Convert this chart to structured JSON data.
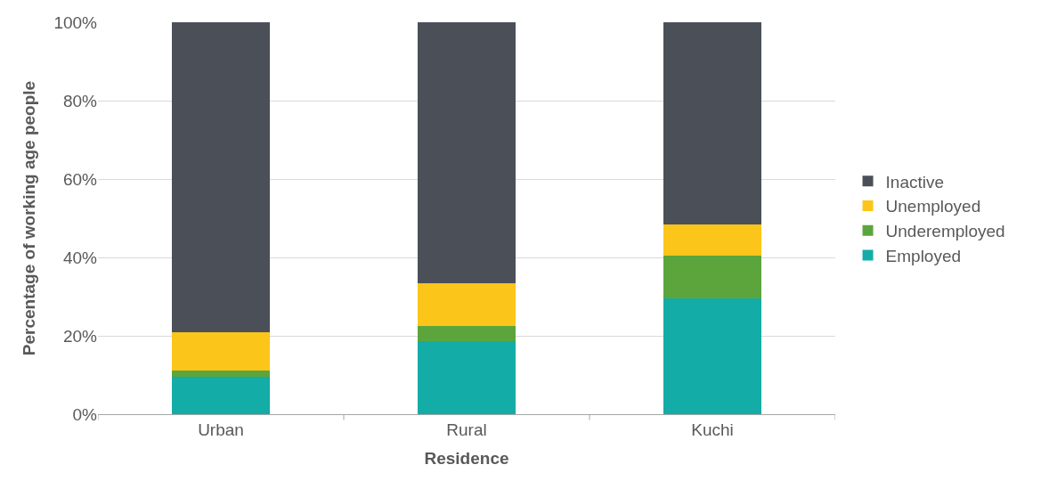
{
  "chart_data": {
    "type": "bar",
    "stacked": true,
    "xlabel": "Residence",
    "ylabel": "Percentage of working age people",
    "categories": [
      "Urban",
      "Rural",
      "Kuchi"
    ],
    "series": [
      {
        "name": "Employed",
        "color": "#14aca6",
        "values": [
          9.5,
          18.6,
          29.6
        ]
      },
      {
        "name": "Underemployed",
        "color": "#5ca53c",
        "values": [
          1.6,
          4.0,
          10.9
        ]
      },
      {
        "name": "Unemployed",
        "color": "#fbc51a",
        "values": [
          9.7,
          10.9,
          7.9
        ]
      },
      {
        "name": "Inactive",
        "color": "#4b5058",
        "values": [
          79.2,
          66.5,
          51.6
        ]
      }
    ],
    "ylim": [
      0,
      100
    ],
    "yticks": [
      {
        "value": 0,
        "label": "0%"
      },
      {
        "value": 20,
        "label": "20%"
      },
      {
        "value": 40,
        "label": "40%"
      },
      {
        "value": 60,
        "label": "60%"
      },
      {
        "value": 80,
        "label": "80%"
      },
      {
        "value": 100,
        "label": "100%"
      }
    ],
    "grid": "y",
    "legend": "right"
  }
}
